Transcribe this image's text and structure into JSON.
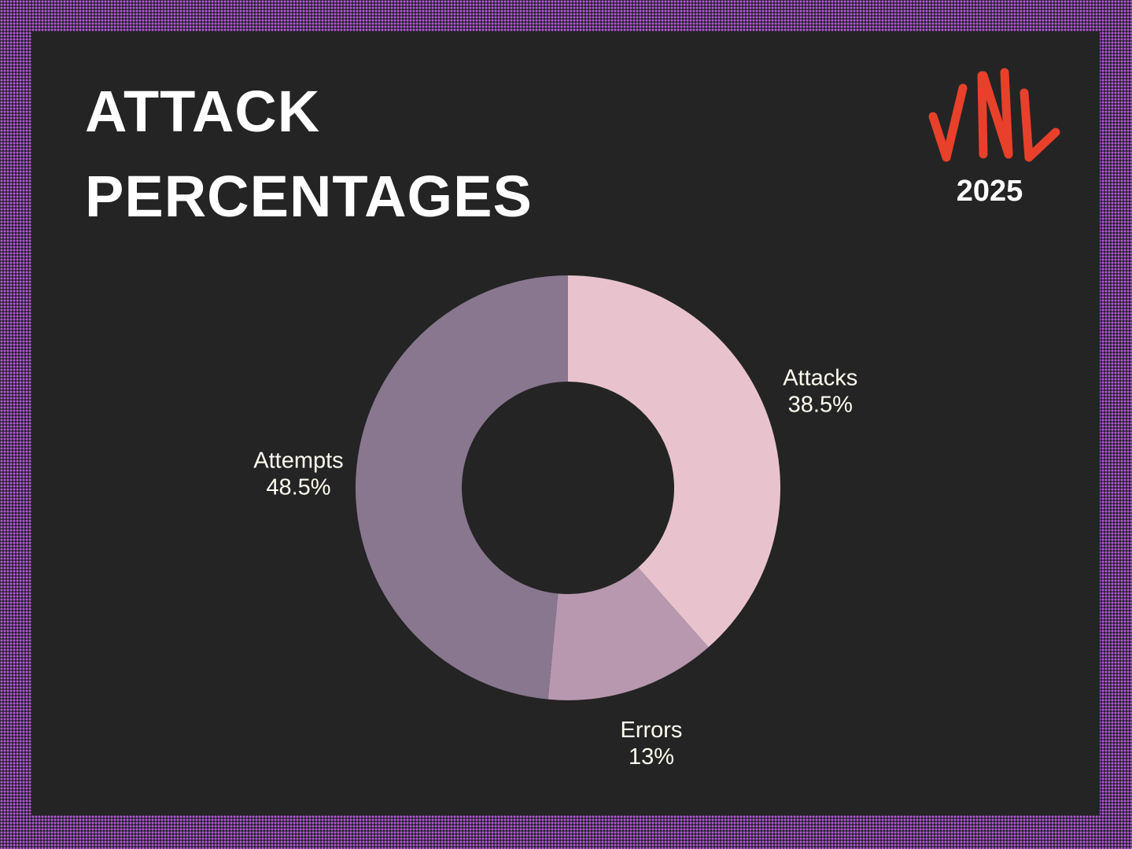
{
  "chart_data": {
    "type": "donut",
    "title": "ATTACK PERCENTAGES",
    "subtitle": "2025",
    "categories": [
      "Attacks",
      "Errors",
      "Attempts"
    ],
    "values": [
      38.5,
      13,
      48.5
    ],
    "value_labels": [
      "38.5%",
      "13%",
      "48.5%"
    ],
    "colors": [
      "#e8c3cd",
      "#b898ae",
      "#88778f"
    ]
  }
}
